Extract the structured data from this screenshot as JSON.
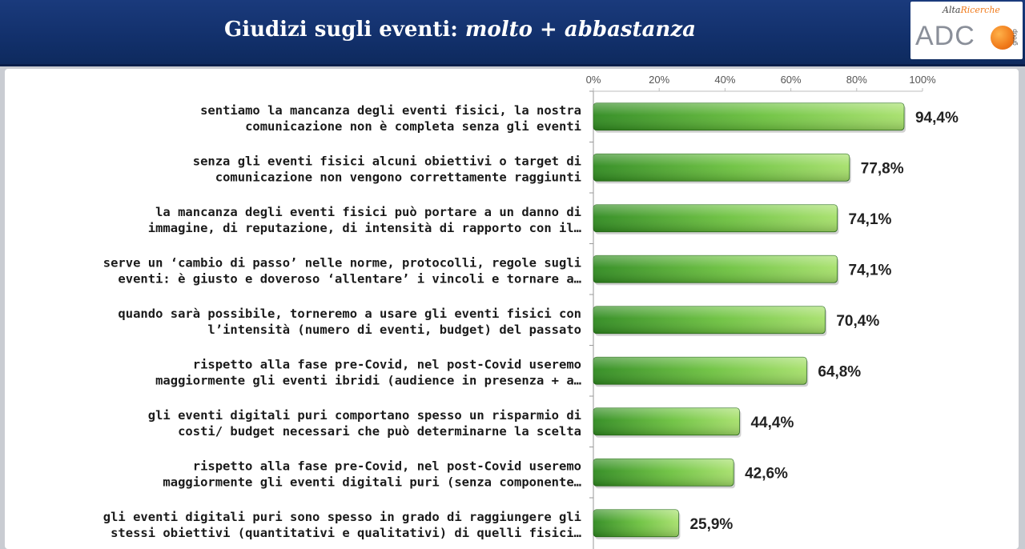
{
  "header": {
    "title_main": "Giudizi sugli eventi:",
    "title_emphasis": "molto + abbastanza"
  },
  "logo": {
    "brand_top": "Alta",
    "brand_top_accent": "Ricerche",
    "brand_main": "ADC",
    "brand_sub": "group"
  },
  "colors": {
    "header_bg": "#12306b",
    "bar_dark": "#2e8a1e",
    "bar_light": "#a6e06a"
  },
  "chart_data": {
    "type": "bar",
    "orientation": "horizontal",
    "title": "Giudizi sugli eventi: molto + abbastanza",
    "xlim": [
      0,
      100
    ],
    "ticks": [
      "0%",
      "20%",
      "40%",
      "60%",
      "80%",
      "100%"
    ],
    "tick_values": [
      0,
      20,
      40,
      60,
      80,
      100
    ],
    "grid": false,
    "legend": "none",
    "categories": [
      [
        "sentiamo la mancanza degli eventi fisici, la nostra",
        "comunicazione non è completa senza gli eventi"
      ],
      [
        "senza gli eventi fisici alcuni obiettivi o target di",
        "comunicazione non vengono correttamente raggiunti"
      ],
      [
        "la mancanza degli eventi fisici può portare a un danno di",
        "immagine, di reputazione, di intensità di rapporto con il…"
      ],
      [
        "serve un ‘cambio di passo’ nelle norme, protocolli, regole sugli",
        "eventi: è giusto e doveroso ‘allentare’ i vincoli e tornare a…"
      ],
      [
        "quando sarà possibile, torneremo a usare gli eventi fisici con",
        "l’intensità (numero di eventi, budget) del passato"
      ],
      [
        "rispetto alla fase pre-Covid, nel post-Covid useremo",
        "maggiormente gli eventi ibridi (audience in presenza + a…"
      ],
      [
        "gli eventi digitali puri comportano spesso un risparmio di",
        "costi/ budget necessari che può determinarne la scelta"
      ],
      [
        "rispetto alla fase pre-Covid, nel post-Covid useremo",
        "maggiormente gli eventi digitali puri (senza componente…"
      ],
      [
        "gli eventi digitali puri sono spesso in grado di raggiungere gli",
        "stessi obiettivi (quantitativi e qualitativi) di quelli fisici…"
      ]
    ],
    "values": [
      94.4,
      77.8,
      74.1,
      74.1,
      70.4,
      64.8,
      44.4,
      42.6,
      25.9
    ],
    "value_labels": [
      "94,4%",
      "77,8%",
      "74,1%",
      "74,1%",
      "70,4%",
      "64,8%",
      "44,4%",
      "42,6%",
      "25,9%"
    ]
  }
}
